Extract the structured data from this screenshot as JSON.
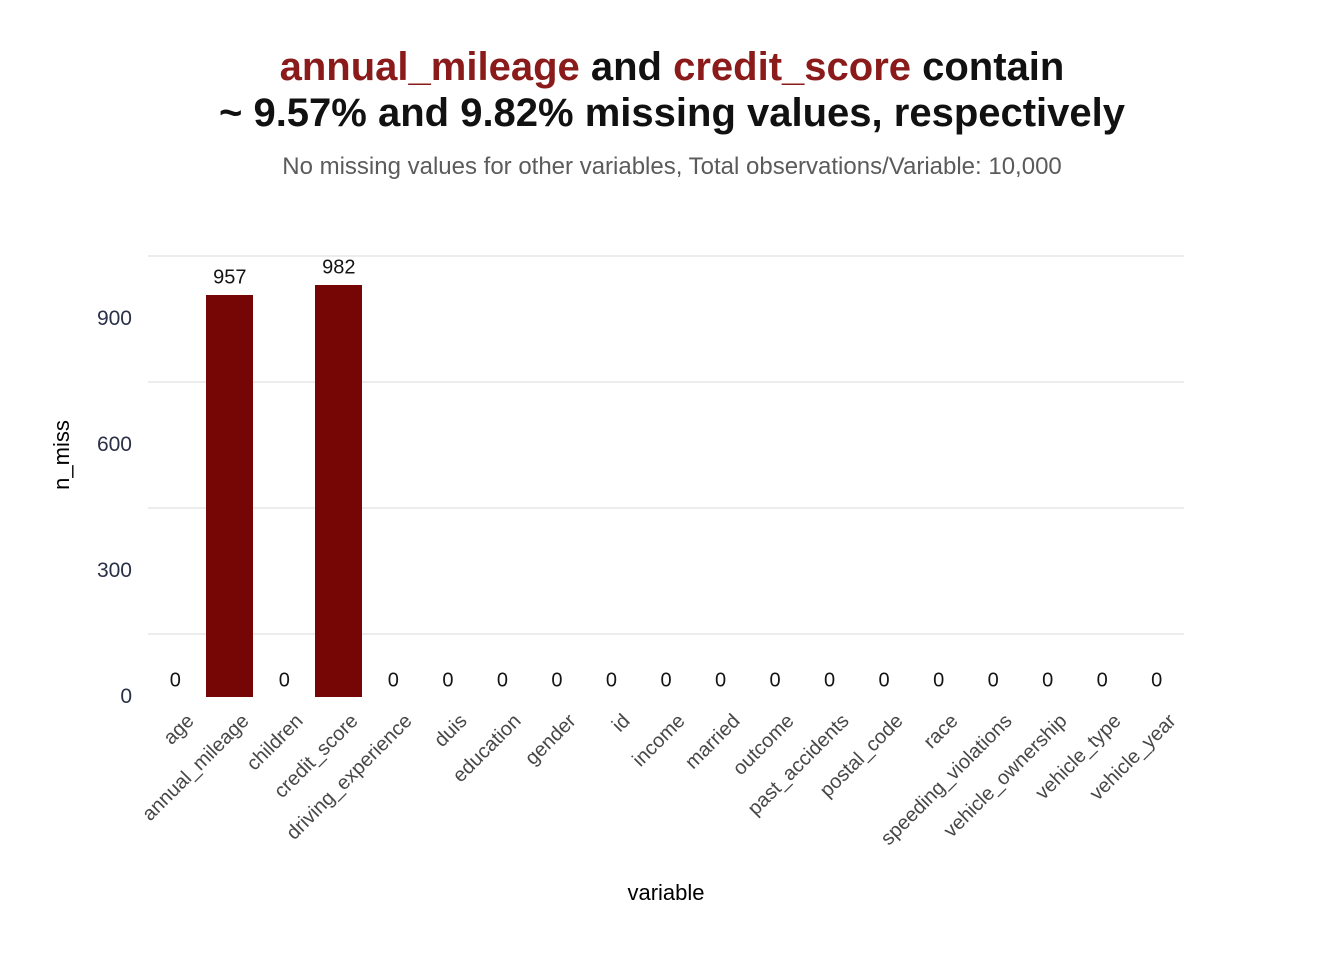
{
  "title": {
    "segments": [
      {
        "text": "annual_mileage",
        "highlight": true
      },
      {
        "text": " and ",
        "highlight": false
      },
      {
        "text": "credit_score",
        "highlight": true
      },
      {
        "text": " contain",
        "highlight": false
      }
    ],
    "line2": "~ 9.57% and 9.82% missing values, respectively",
    "highlight_color": "#8B1A1A",
    "text_color": "#111111"
  },
  "subtitle": {
    "text": "No missing values for other variables, Total observations/Variable: 10,000",
    "color": "#5B5B5B"
  },
  "chart_data": {
    "type": "bar",
    "title": "annual_mileage and credit_score contain ~ 9.57% and 9.82% missing values, respectively",
    "subtitle": "No missing values for other variables, Total observations/Variable: 10,000",
    "categories": [
      "age",
      "annual_mileage",
      "children",
      "credit_score",
      "driving_experience",
      "duis",
      "education",
      "gender",
      "id",
      "income",
      "married",
      "outcome",
      "past_accidents",
      "postal_code",
      "race",
      "speeding_violations",
      "vehicle_ownership",
      "vehicle_type",
      "vehicle_year"
    ],
    "values": [
      0,
      957,
      0,
      982,
      0,
      0,
      0,
      0,
      0,
      0,
      0,
      0,
      0,
      0,
      0,
      0,
      0,
      0,
      0
    ],
    "value_labels_shown": true,
    "xlabel": "variable",
    "ylabel": "n_miss",
    "y_ticks": [
      0,
      300,
      600,
      900
    ],
    "minor_gridlines": [
      150,
      450,
      750,
      1050
    ],
    "ylim": [
      0,
      1080
    ],
    "legend": "none",
    "bar_color": "#760505",
    "grid_color": "#ECECEC",
    "y_tick_color": "#2A3046",
    "x_tick_color": "#474747",
    "value_label_color": "#141414",
    "axis_title_color": "#000000"
  }
}
